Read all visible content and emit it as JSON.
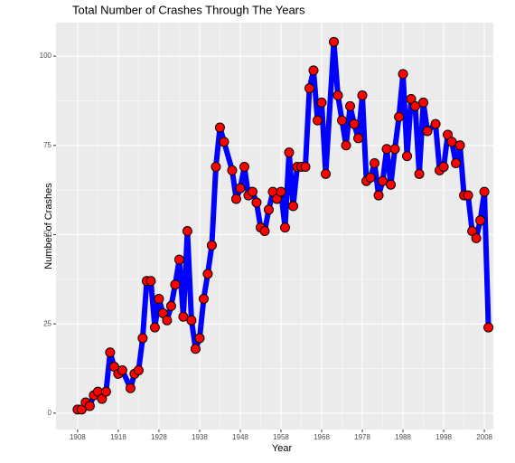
{
  "chart_data": {
    "type": "line",
    "title": "Total Number of Crashes Through The Years",
    "x_label": "Year",
    "y_label": "Number of Crashes",
    "x": [
      1908,
      1909,
      1910,
      1911,
      1912,
      1913,
      1914,
      1915,
      1916,
      1917,
      1918,
      1919,
      1921,
      1922,
      1923,
      1924,
      1925,
      1926,
      1927,
      1928,
      1929,
      1930,
      1931,
      1932,
      1933,
      1934,
      1935,
      1936,
      1937,
      1938,
      1939,
      1940,
      1941,
      1942,
      1943,
      1944,
      1946,
      1947,
      1948,
      1949,
      1950,
      1951,
      1952,
      1953,
      1954,
      1955,
      1956,
      1957,
      1958,
      1959,
      1960,
      1961,
      1962,
      1963,
      1964,
      1965,
      1966,
      1967,
      1968,
      1969,
      1971,
      1972,
      1973,
      1974,
      1975,
      1976,
      1977,
      1978,
      1979,
      1980,
      1981,
      1982,
      1983,
      1984,
      1985,
      1986,
      1987,
      1988,
      1989,
      1990,
      1991,
      1992,
      1993,
      1994,
      1996,
      1997,
      1998,
      1999,
      2000,
      2001,
      2002,
      2003,
      2004,
      2005,
      2006,
      2007,
      2008,
      2009
    ],
    "series": [
      {
        "name": "Crashes",
        "color": "#0000ff",
        "marker_color": "#ff0000",
        "values": [
          1,
          1,
          3,
          2,
          5,
          6,
          4,
          6,
          17,
          13,
          11,
          12,
          7,
          11,
          12,
          21,
          37,
          37,
          24,
          32,
          28,
          26,
          30,
          36,
          43,
          27,
          51,
          26,
          18,
          21,
          32,
          39,
          47,
          69,
          80,
          76,
          68,
          60,
          63,
          69,
          61,
          62,
          59,
          52,
          51,
          57,
          62,
          60,
          62,
          52,
          73,
          58,
          69,
          69,
          69,
          91,
          96,
          82,
          87,
          67,
          104,
          89,
          82,
          75,
          86,
          81,
          77,
          89,
          65,
          66,
          70,
          61,
          65,
          74,
          64,
          74,
          83,
          95,
          72,
          88,
          86,
          67,
          87,
          79,
          81,
          68,
          69,
          78,
          76,
          70,
          75,
          61,
          61,
          51,
          49,
          54,
          62,
          24
        ]
      }
    ],
    "xlim": [
      1902.7,
      2010.2
    ],
    "ylim": [
      -4.6,
      109.4
    ],
    "xticks": [
      1908,
      1918,
      1928,
      1938,
      1948,
      1958,
      1968,
      1978,
      1988,
      1998,
      2008
    ],
    "yticks": [
      0,
      25,
      50,
      75,
      100
    ],
    "grid": true
  }
}
